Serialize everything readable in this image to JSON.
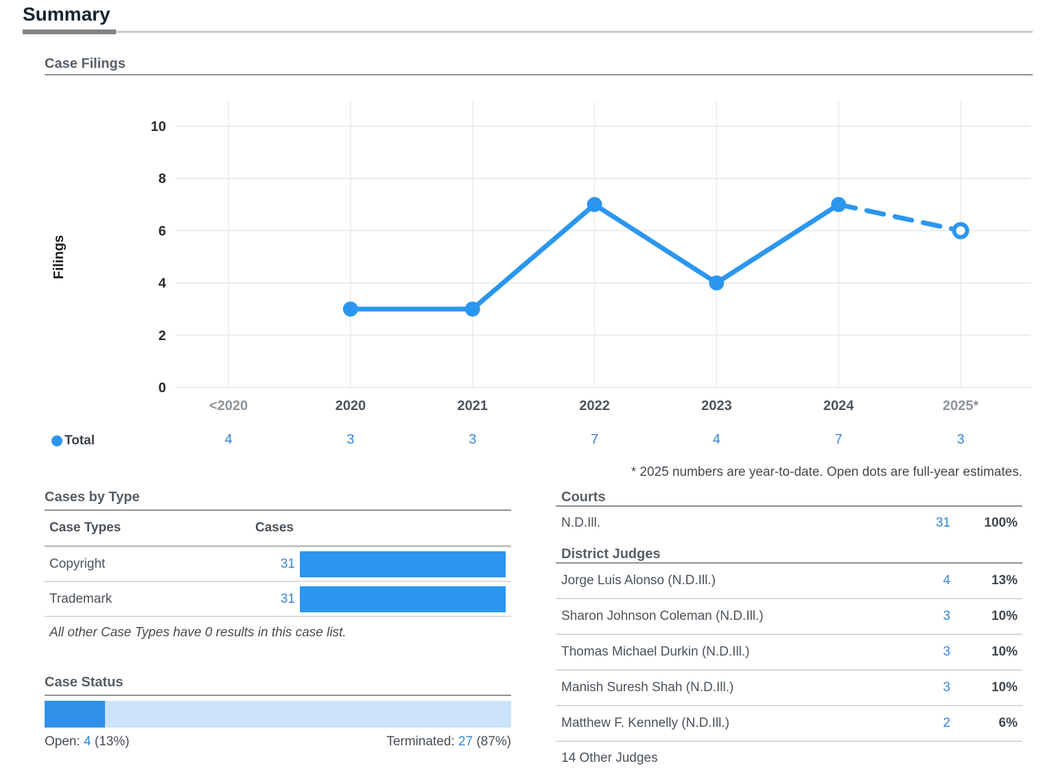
{
  "page": {
    "title": "Summary"
  },
  "case_filings": {
    "heading": "Case Filings",
    "footnote": "* 2025 numbers are year-to-date. Open dots are full-year estimates."
  },
  "chart_data": {
    "type": "line",
    "title": "Case Filings",
    "xlabel": "",
    "ylabel": "Filings",
    "ylim": [
      0,
      10
    ],
    "y_ticks": [
      0,
      2,
      4,
      6,
      8,
      10
    ],
    "grid": true,
    "legend_position": "bottom-left",
    "categories": [
      "<2020",
      "2020",
      "2021",
      "2022",
      "2023",
      "2024",
      "2025*"
    ],
    "muted_categories": [
      "<2020",
      "2025*"
    ],
    "series": [
      {
        "name": "Total",
        "table_values": [
          4,
          3,
          3,
          7,
          4,
          7,
          3
        ],
        "plotted_values": [
          null,
          3,
          3,
          7,
          4,
          7,
          6
        ],
        "estimated_point_indexes": [
          6
        ],
        "color": "#2b96ef"
      }
    ]
  },
  "cases_by_type": {
    "heading": "Cases by Type",
    "columns": {
      "type": "Case Types",
      "cases": "Cases"
    },
    "rows": [
      {
        "label": "Copyright",
        "count": 31
      },
      {
        "label": "Trademark",
        "count": 31
      }
    ],
    "max_count": 31,
    "note": "All other Case Types have 0 results in this case list."
  },
  "case_status": {
    "heading": "Case Status",
    "open_label": "Open:",
    "open_count": 4,
    "open_pct_text": "(13%)",
    "open_pct_value": 13,
    "terminated_label": "Terminated:",
    "terminated_count": 27,
    "terminated_pct_text": "(87%)"
  },
  "courts": {
    "heading": "Courts",
    "rows": [
      {
        "label": "N.D.Ill.",
        "count": 31,
        "pct": "100%"
      }
    ]
  },
  "district_judges": {
    "heading": "District Judges",
    "rows": [
      {
        "label": "Jorge Luis Alonso (N.D.Ill.)",
        "count": 4,
        "pct": "13%"
      },
      {
        "label": "Sharon Johnson Coleman (N.D.Ill.)",
        "count": 3,
        "pct": "10%"
      },
      {
        "label": "Thomas Michael Durkin (N.D.Ill.)",
        "count": 3,
        "pct": "10%"
      },
      {
        "label": "Manish Suresh Shah (N.D.Ill.)",
        "count": 3,
        "pct": "10%"
      },
      {
        "label": "Matthew F. Kennelly (N.D.Ill.)",
        "count": 2,
        "pct": "6%"
      }
    ],
    "footer": "14 Other Judges"
  },
  "colors": {
    "accent_blue": "#2b96ef",
    "link_blue": "#3585d5",
    "light_blue": "#cbe4fb",
    "status_open_blue": "#2e90e9",
    "grid_gray": "#ebebeb",
    "year_label": "#4d545b",
    "year_label_muted": "#8e9398",
    "tick_label": "#2b2b2b"
  }
}
